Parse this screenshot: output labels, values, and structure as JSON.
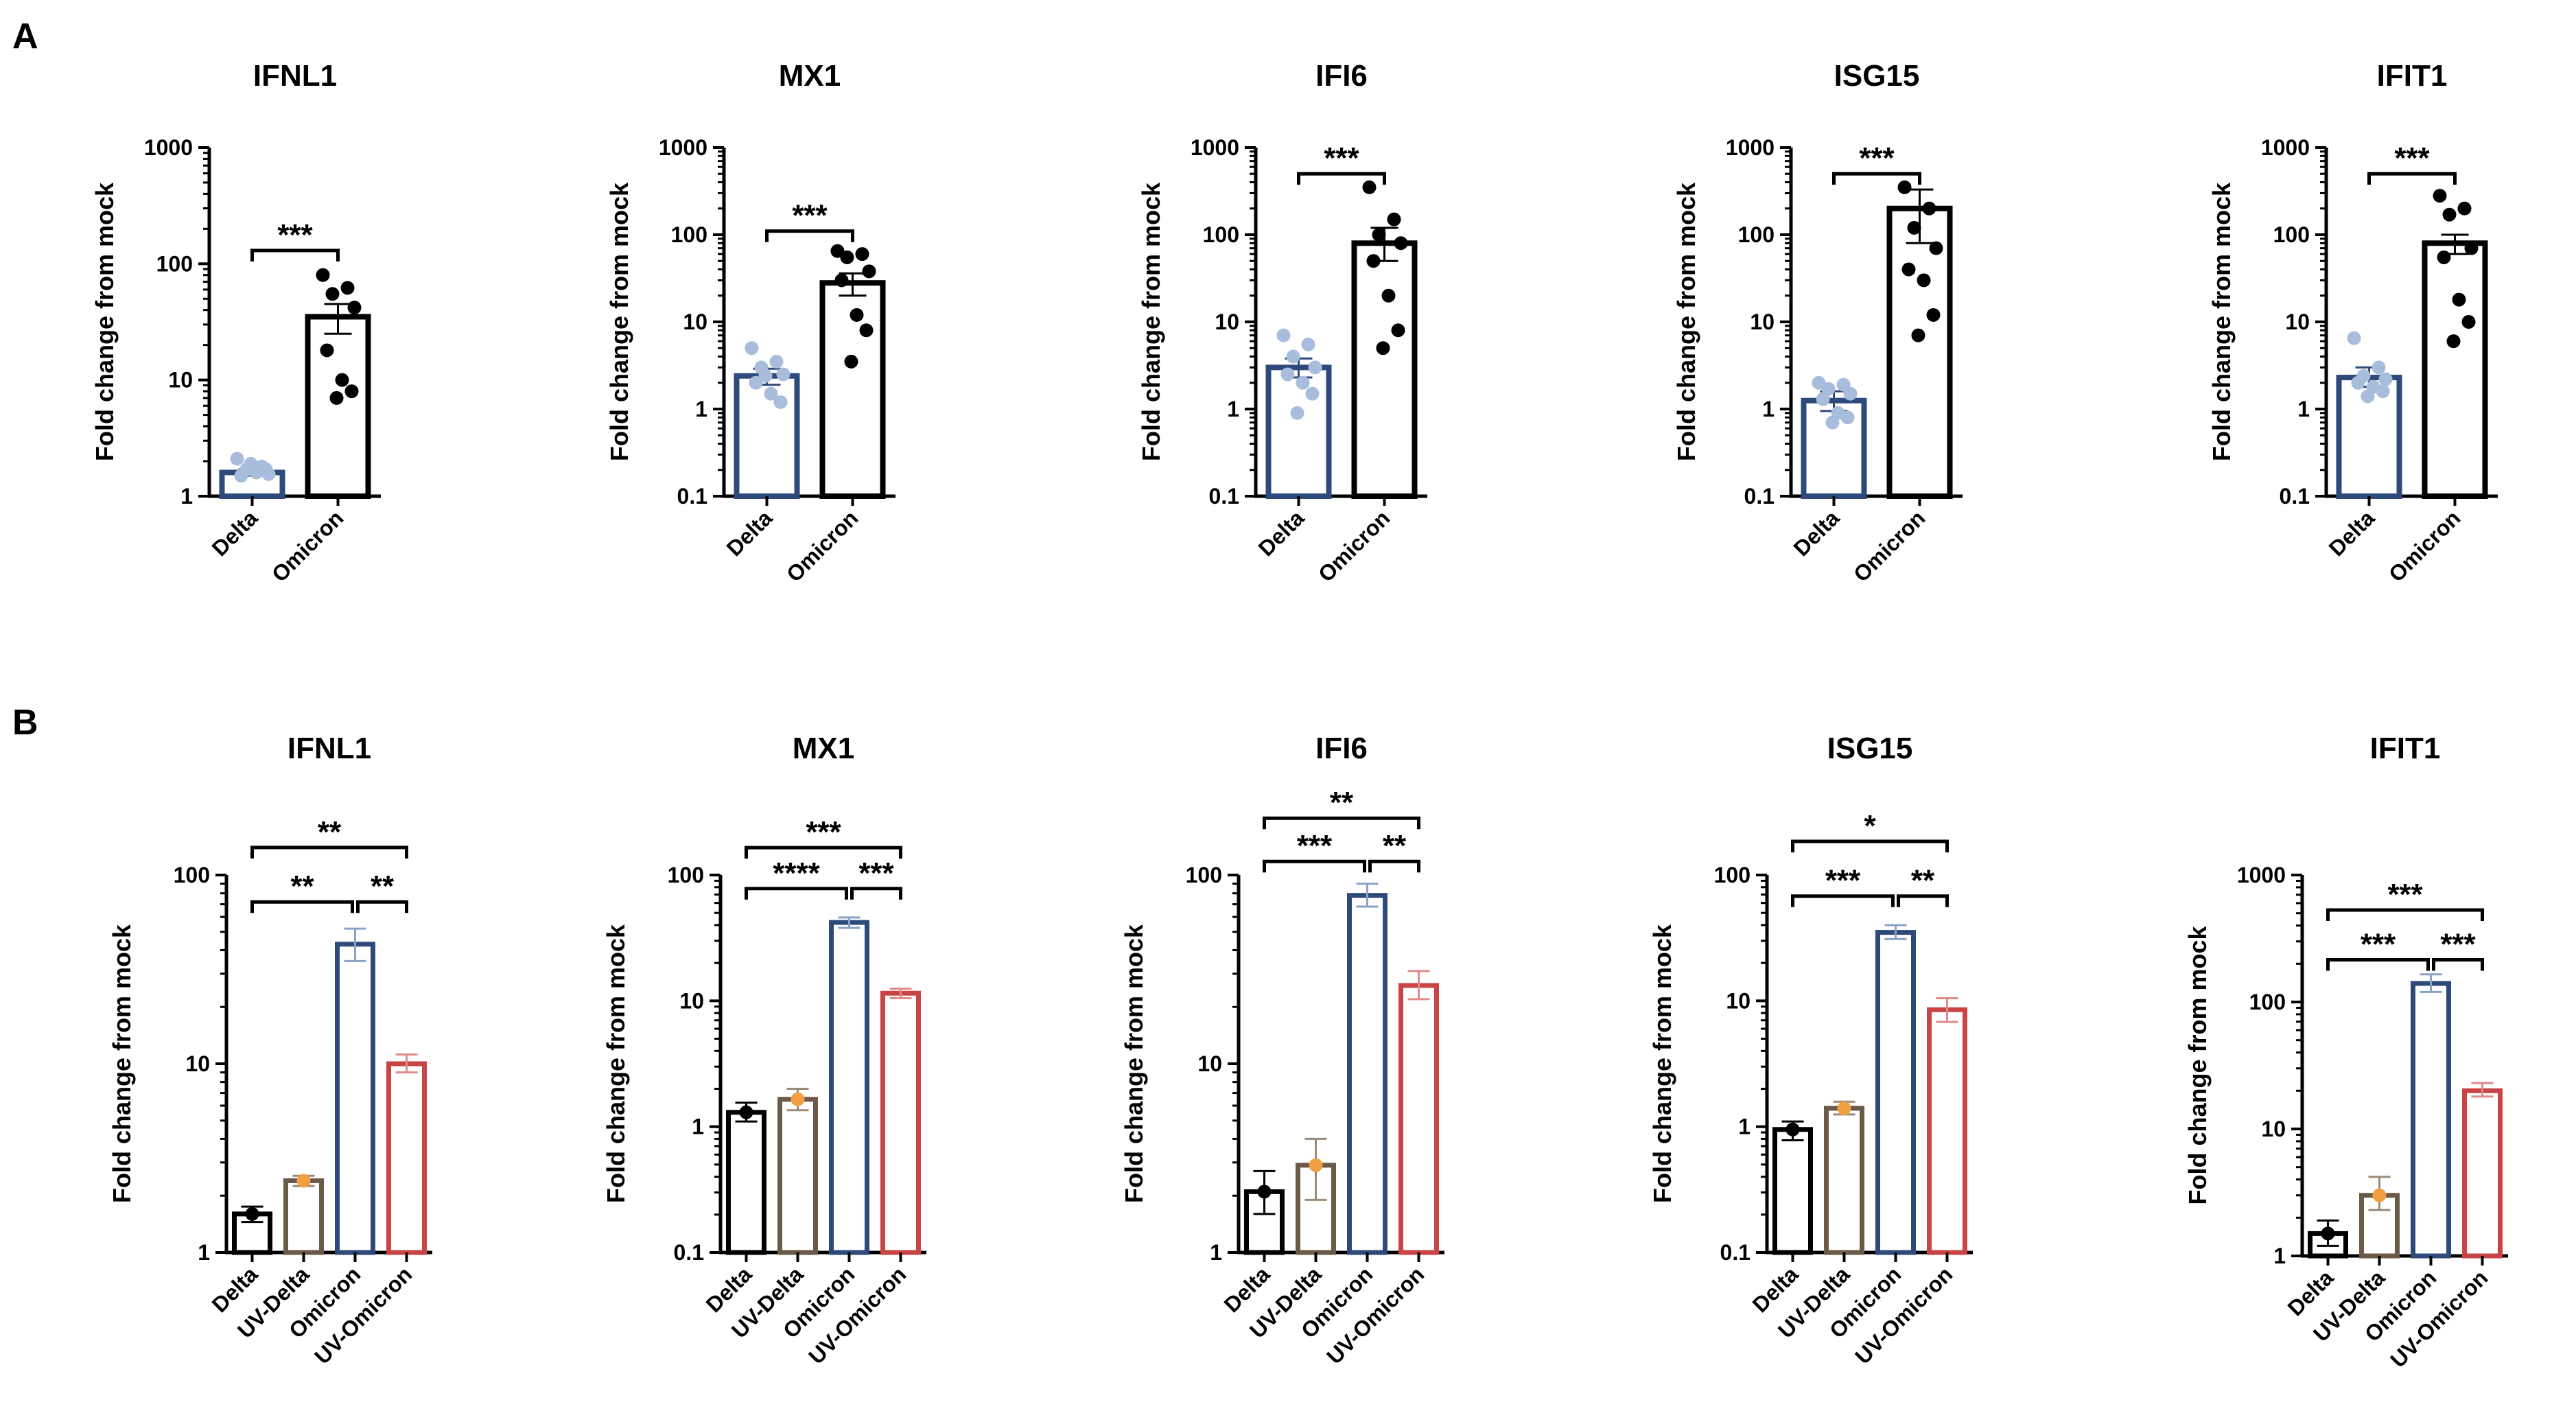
{
  "panels": [
    "A",
    "B"
  ],
  "y_axis_label": "Fold change from mock",
  "colors": {
    "black": "#000000",
    "delta_light": "#a8bcdc",
    "blue": "#2e4a7a",
    "brown": "#6b5a48",
    "red": "#c94444",
    "orange": "#f0a040",
    "blue_err": "#8aa2c8",
    "red_err": "#e08a8a",
    "brown_err": "#9a8a7a"
  },
  "chart_data": [
    {
      "panel": "A",
      "type": "bar",
      "title": "IFNL1",
      "ylabel": "Fold change from mock",
      "yscale": "log",
      "ylim": [
        1,
        1000
      ],
      "yticks": [
        1,
        10,
        100,
        1000
      ],
      "ytick_labels": [
        "1",
        "10",
        "100",
        "1000"
      ],
      "categories": [
        "Delta",
        "Omicron"
      ],
      "values": [
        1.6,
        35
      ],
      "error": [
        [
          1.5,
          1.7
        ],
        [
          25,
          45
        ]
      ],
      "points": [
        [
          2.1,
          1.8,
          1.7,
          1.55,
          1.5,
          1.6,
          1.7,
          1.9
        ],
        [
          80,
          62,
          55,
          42,
          18,
          10,
          8,
          7
        ]
      ],
      "significance": [
        {
          "from": 0,
          "to": 1,
          "label": "***",
          "y": 130
        }
      ]
    },
    {
      "panel": "A",
      "type": "bar",
      "title": "MX1",
      "ylabel": "Fold change from mock",
      "yscale": "log",
      "ylim": [
        0.1,
        1000
      ],
      "yticks": [
        0.1,
        1,
        10,
        100,
        1000
      ],
      "ytick_labels": [
        "0.1",
        "1",
        "10",
        "100",
        "1000"
      ],
      "categories": [
        "Delta",
        "Omicron"
      ],
      "values": [
        2.4,
        28
      ],
      "error": [
        [
          1.9,
          2.9
        ],
        [
          20,
          36
        ]
      ],
      "points": [
        [
          5,
          3.5,
          3,
          2.5,
          2,
          1.5,
          1.2,
          2.4
        ],
        [
          65,
          60,
          55,
          38,
          30,
          12,
          8,
          3.5
        ]
      ],
      "significance": [
        {
          "from": 0,
          "to": 1,
          "label": "***",
          "y": 110
        }
      ]
    },
    {
      "panel": "A",
      "type": "bar",
      "title": "IFI6",
      "ylabel": "Fold change from mock",
      "yscale": "log",
      "ylim": [
        0.1,
        1000
      ],
      "yticks": [
        0.1,
        1,
        10,
        100,
        1000
      ],
      "ytick_labels": [
        "0.1",
        "1",
        "10",
        "100",
        "1000"
      ],
      "categories": [
        "Delta",
        "Omicron"
      ],
      "values": [
        3,
        80
      ],
      "error": [
        [
          2.3,
          3.8
        ],
        [
          50,
          120
        ]
      ],
      "points": [
        [
          7,
          5.5,
          4,
          3,
          2.5,
          2,
          1.5,
          0.9
        ],
        [
          350,
          150,
          100,
          80,
          50,
          20,
          8,
          5
        ]
      ],
      "significance": [
        {
          "from": 0,
          "to": 1,
          "label": "***",
          "y": 500
        }
      ]
    },
    {
      "panel": "A",
      "type": "bar",
      "title": "ISG15",
      "ylabel": "Fold change from mock",
      "yscale": "log",
      "ylim": [
        0.1,
        1000
      ],
      "yticks": [
        0.1,
        1,
        10,
        100,
        1000
      ],
      "ytick_labels": [
        "0.1",
        "1",
        "10",
        "100",
        "1000"
      ],
      "categories": [
        "Delta",
        "Omicron"
      ],
      "values": [
        1.25,
        200
      ],
      "error": [
        [
          0.95,
          1.6
        ],
        [
          80,
          330
        ]
      ],
      "points": [
        [
          2,
          1.9,
          1.7,
          1.5,
          1.3,
          0.9,
          0.8,
          0.7
        ],
        [
          350,
          200,
          120,
          70,
          40,
          30,
          12,
          7
        ]
      ],
      "significance": [
        {
          "from": 0,
          "to": 1,
          "label": "***",
          "y": 500
        }
      ]
    },
    {
      "panel": "A",
      "type": "bar",
      "title": "IFIT1",
      "ylabel": "Fold change from mock",
      "yscale": "log",
      "ylim": [
        0.1,
        1000
      ],
      "yticks": [
        0.1,
        1,
        10,
        100,
        1000
      ],
      "ytick_labels": [
        "0.1",
        "1",
        "10",
        "100",
        "1000"
      ],
      "categories": [
        "Delta",
        "Omicron"
      ],
      "values": [
        2.3,
        80
      ],
      "error": [
        [
          1.8,
          3
        ],
        [
          60,
          100
        ]
      ],
      "points": [
        [
          6.5,
          3,
          2.4,
          2.2,
          2,
          1.8,
          1.6,
          1.4
        ],
        [
          280,
          200,
          170,
          70,
          55,
          18,
          10,
          6
        ]
      ],
      "significance": [
        {
          "from": 0,
          "to": 1,
          "label": "***",
          "y": 500
        }
      ]
    },
    {
      "panel": "B",
      "type": "bar",
      "title": "IFNL1",
      "ylabel": "Fold change from mock",
      "yscale": "log",
      "ylim": [
        1,
        100
      ],
      "yticks": [
        1,
        10,
        100
      ],
      "ytick_labels": [
        "1",
        "10",
        "100"
      ],
      "categories": [
        "Delta",
        "UV-Delta",
        "Omicron",
        "UV-Omicron"
      ],
      "values": [
        1.6,
        2.4,
        43,
        10
      ],
      "error": [
        [
          1.45,
          1.75
        ],
        [
          2.25,
          2.55
        ],
        [
          35,
          52
        ],
        [
          9,
          11.2
        ]
      ],
      "points": [
        [
          1.6
        ],
        [
          2.4
        ],
        [],
        []
      ],
      "significance": [
        {
          "from": 0,
          "to": 3,
          "label": "**",
          "y": 140
        },
        {
          "from": 0,
          "to": 2,
          "label": "**",
          "y": 72
        },
        {
          "from": 2,
          "to": 3,
          "label": "**",
          "y": 72
        }
      ]
    },
    {
      "panel": "B",
      "type": "bar",
      "title": "MX1",
      "ylabel": "Fold change from mock",
      "yscale": "log",
      "ylim": [
        0.1,
        100
      ],
      "yticks": [
        0.1,
        1,
        10,
        100
      ],
      "ytick_labels": [
        "0.1",
        "1",
        "10",
        "100"
      ],
      "categories": [
        "Delta",
        "UV-Delta",
        "Omicron",
        "UV-Omicron"
      ],
      "values": [
        1.3,
        1.65,
        42,
        11.5
      ],
      "error": [
        [
          1.1,
          1.55
        ],
        [
          1.35,
          2.0
        ],
        [
          38,
          46
        ],
        [
          10.5,
          12.5
        ]
      ],
      "points": [
        [
          1.3
        ],
        [
          1.65
        ],
        [],
        []
      ],
      "significance": [
        {
          "from": 0,
          "to": 3,
          "label": "***",
          "y": 165
        },
        {
          "from": 0,
          "to": 2,
          "label": "****",
          "y": 78
        },
        {
          "from": 2,
          "to": 3,
          "label": "***",
          "y": 78
        }
      ]
    },
    {
      "panel": "B",
      "type": "bar",
      "title": "IFI6",
      "ylabel": "Fold change from mock",
      "yscale": "log",
      "ylim": [
        1,
        100
      ],
      "yticks": [
        1,
        10,
        100
      ],
      "ytick_labels": [
        "1",
        "10",
        "100"
      ],
      "categories": [
        "Delta",
        "UV-Delta",
        "Omicron",
        "UV-Omicron"
      ],
      "values": [
        2.1,
        2.9,
        78,
        26
      ],
      "error": [
        [
          1.6,
          2.7
        ],
        [
          1.9,
          4.0
        ],
        [
          68,
          90
        ],
        [
          22,
          31
        ]
      ],
      "points": [
        [
          2.1
        ],
        [
          2.9
        ],
        [],
        []
      ],
      "significance": [
        {
          "from": 0,
          "to": 3,
          "label": "**",
          "y": 200
        },
        {
          "from": 0,
          "to": 2,
          "label": "***",
          "y": 118
        },
        {
          "from": 2,
          "to": 3,
          "label": "**",
          "y": 118
        }
      ]
    },
    {
      "panel": "B",
      "type": "bar",
      "title": "ISG15",
      "ylabel": "Fold change from mock",
      "yscale": "log",
      "ylim": [
        0.1,
        100
      ],
      "yticks": [
        0.1,
        1,
        10,
        100
      ],
      "ytick_labels": [
        "0.1",
        "1",
        "10",
        "100"
      ],
      "categories": [
        "Delta",
        "UV-Delta",
        "Omicron",
        "UV-Omicron"
      ],
      "values": [
        0.95,
        1.4,
        35,
        8.5
      ],
      "error": [
        [
          0.78,
          1.1
        ],
        [
          1.25,
          1.58
        ],
        [
          31,
          40
        ],
        [
          6.8,
          10.5
        ]
      ],
      "points": [
        [
          0.95
        ],
        [
          1.4
        ],
        [],
        []
      ],
      "significance": [
        {
          "from": 0,
          "to": 3,
          "label": "*",
          "y": 185
        },
        {
          "from": 0,
          "to": 2,
          "label": "***",
          "y": 68
        },
        {
          "from": 2,
          "to": 3,
          "label": "**",
          "y": 68
        }
      ]
    },
    {
      "panel": "B",
      "type": "bar",
      "title": "IFIT1",
      "ylabel": "Fold change from mock",
      "yscale": "log",
      "ylim": [
        1,
        1000
      ],
      "yticks": [
        1,
        10,
        100,
        1000
      ],
      "ytick_labels": [
        "1",
        "10",
        "100",
        "1000"
      ],
      "categories": [
        "Delta",
        "UV-Delta",
        "Omicron",
        "UV-Omicron"
      ],
      "values": [
        1.5,
        3.0,
        140,
        20
      ],
      "error": [
        [
          1.2,
          1.9
        ],
        [
          2.3,
          4.2
        ],
        [
          120,
          165
        ],
        [
          18,
          23
        ]
      ],
      "points": [
        [
          1.5
        ],
        [
          3.0
        ],
        [],
        []
      ],
      "significance": [
        {
          "from": 0,
          "to": 3,
          "label": "***",
          "y": 530
        },
        {
          "from": 0,
          "to": 2,
          "label": "***",
          "y": 215
        },
        {
          "from": 2,
          "to": 3,
          "label": "***",
          "y": 215
        }
      ]
    }
  ]
}
